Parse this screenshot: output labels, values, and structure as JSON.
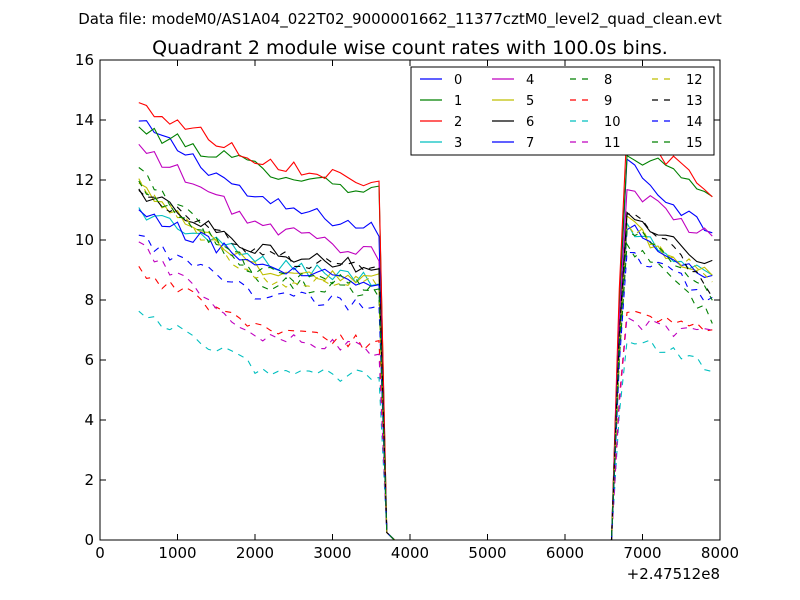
{
  "chart_data": {
    "type": "line",
    "header": "Data file: modeM0/AS1A04_022T02_9000001662_11377cztM0_level2_quad_clean.evt",
    "title": "Quadrant 2 module wise count rates with 100.0s bins.",
    "xlabel": "",
    "ylabel": "",
    "x_offset_label": "+2.47512e8",
    "xlim": [
      0,
      8000
    ],
    "ylim": [
      0,
      16
    ],
    "x_ticks": [
      "0",
      "1000",
      "2000",
      "3000",
      "4000",
      "5000",
      "6000",
      "7000",
      "8000"
    ],
    "y_ticks": [
      "0",
      "2",
      "4",
      "6",
      "8",
      "10",
      "12",
      "14",
      "16"
    ],
    "grid": false,
    "legend_position": "top-right",
    "segment_a_x": [
      500,
      3600
    ],
    "segment_b_x": [
      6800,
      7900
    ],
    "series": [
      {
        "name": "0",
        "color": "#0000ff",
        "dash": false,
        "a": [
          13.9,
          11.3,
          10.3
        ],
        "b": [
          12.6,
          11.3,
          10.3
        ]
      },
      {
        "name": "1",
        "color": "#008000",
        "dash": false,
        "a": [
          13.7,
          12.4,
          11.6
        ],
        "b": [
          12.9,
          12.4,
          11.2
        ]
      },
      {
        "name": "2",
        "color": "#ff0000",
        "dash": false,
        "a": [
          14.5,
          12.7,
          11.9
        ],
        "b": [
          13.5,
          12.7,
          11.4
        ]
      },
      {
        "name": "3",
        "color": "#00bfbf",
        "dash": false,
        "a": [
          11.0,
          9.3,
          8.6
        ],
        "b": [
          10.5,
          9.5,
          9.0
        ]
      },
      {
        "name": "4",
        "color": "#bf00bf",
        "dash": false,
        "a": [
          13.1,
          10.5,
          9.5
        ],
        "b": [
          11.8,
          10.8,
          10.0
        ]
      },
      {
        "name": "5",
        "color": "#bfbf00",
        "dash": false,
        "a": [
          11.8,
          9.0,
          8.7
        ],
        "b": [
          10.6,
          9.4,
          8.9
        ]
      },
      {
        "name": "6",
        "color": "#000000",
        "dash": false,
        "a": [
          11.6,
          9.7,
          9.0
        ],
        "b": [
          10.9,
          10.0,
          9.1
        ]
      },
      {
        "name": "7",
        "color": "#0000ff",
        "dash": false,
        "a": [
          10.9,
          9.2,
          8.6
        ],
        "b": [
          10.5,
          9.6,
          8.8
        ]
      },
      {
        "name": "8",
        "color": "#008000",
        "dash": true,
        "a": [
          12.3,
          8.6,
          8.3
        ],
        "b": [
          9.7,
          8.9,
          7.4
        ]
      },
      {
        "name": "9",
        "color": "#ff0000",
        "dash": true,
        "a": [
          9.0,
          7.0,
          6.5
        ],
        "b": [
          7.6,
          7.2,
          6.9
        ]
      },
      {
        "name": "10",
        "color": "#00bfbf",
        "dash": true,
        "a": [
          7.5,
          5.7,
          5.4
        ],
        "b": [
          6.8,
          6.3,
          5.7
        ]
      },
      {
        "name": "11",
        "color": "#bf00bf",
        "dash": true,
        "a": [
          9.8,
          6.8,
          6.3
        ],
        "b": [
          7.3,
          7.0,
          6.8
        ]
      },
      {
        "name": "12",
        "color": "#bfbf00",
        "dash": true,
        "a": [
          11.9,
          8.6,
          8.6
        ],
        "b": [
          10.6,
          9.6,
          8.6
        ]
      },
      {
        "name": "13",
        "color": "#000000",
        "dash": true,
        "a": [
          11.5,
          9.5,
          9.0
        ],
        "b": [
          11.1,
          9.9,
          8.3
        ]
      },
      {
        "name": "14",
        "color": "#0000ff",
        "dash": true,
        "a": [
          10.0,
          8.2,
          7.8
        ],
        "b": [
          9.5,
          8.9,
          8.0
        ]
      },
      {
        "name": "15",
        "color": "#008000",
        "dash": true,
        "a": [
          11.8,
          8.9,
          8.5
        ],
        "b": [
          10.4,
          9.5,
          8.1
        ]
      }
    ]
  }
}
